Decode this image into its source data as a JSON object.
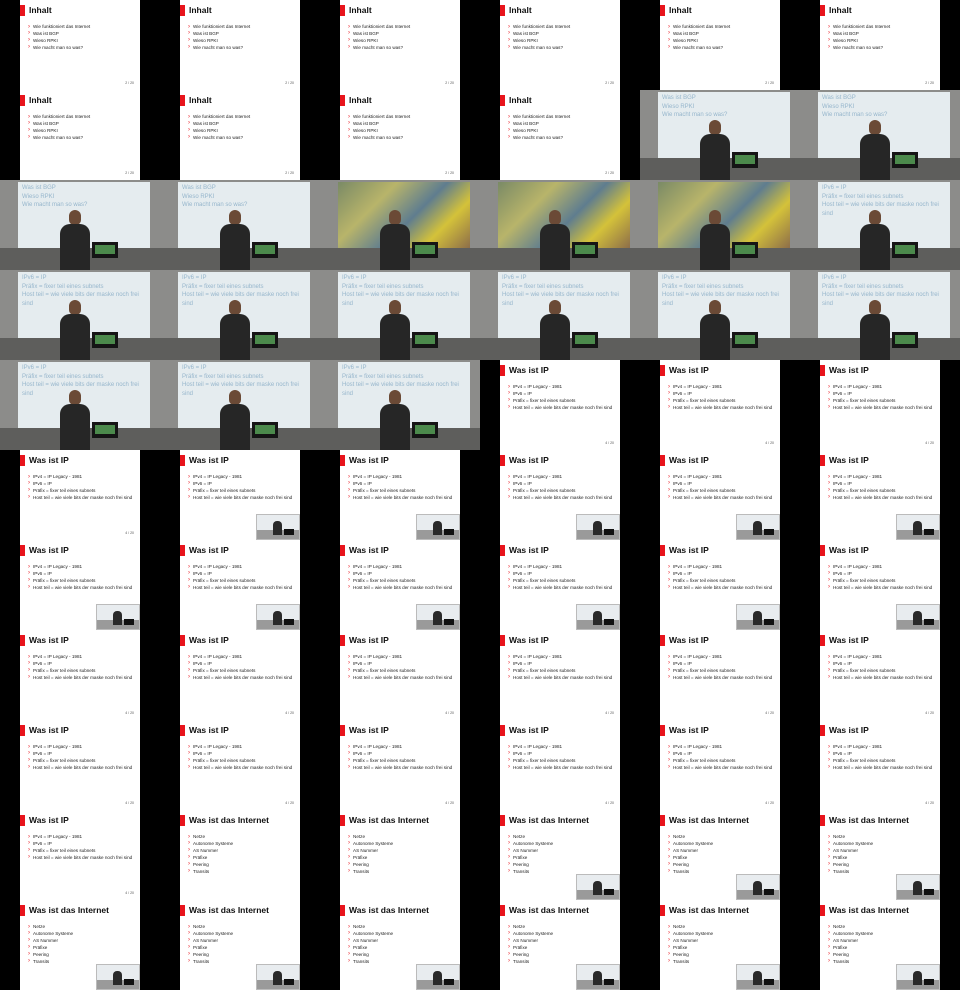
{
  "inhalt": {
    "title": "Inhalt",
    "items": [
      "Wie funktioniert das Internet",
      "Was ist BGP",
      "Wieso RPKI",
      "Wie macht man so was?"
    ],
    "page": "2 / 20"
  },
  "ip": {
    "title": "Was ist IP",
    "items": [
      "IPv4 = IP Legacy - 1981",
      "IPv6 = IP",
      "Präfix = fixer teil eines subnets",
      "Host teil = wie viele bits der maske noch frei sind"
    ],
    "page": "4 / 20"
  },
  "internet": {
    "title": "Was ist das Internet",
    "items": [
      "Netze",
      "Autonome Systeme",
      "AS Nummer",
      "Präfixe",
      "Peering",
      "Transits"
    ]
  },
  "cam_inhalt": [
    "Was ist BGP",
    "Wieso RPKI",
    "Wie macht man so was?"
  ],
  "cam_ip": [
    "IPv6 = IP",
    "Präfix = fixer teil eines subnets",
    "Host teil = wie viele bits der maske noch frei",
    "sind"
  ],
  "frames": [
    {
      "kind": "slide",
      "set": "inhalt",
      "pip": false
    },
    {
      "kind": "slide",
      "set": "inhalt",
      "pip": false
    },
    {
      "kind": "slide",
      "set": "inhalt",
      "pip": false
    },
    {
      "kind": "slide",
      "set": "inhalt",
      "pip": false
    },
    {
      "kind": "slide",
      "set": "inhalt",
      "pip": false
    },
    {
      "kind": "slide",
      "set": "inhalt",
      "pip": false
    },
    {
      "kind": "slide",
      "set": "inhalt",
      "pip": false
    },
    {
      "kind": "slide",
      "set": "inhalt",
      "pip": false
    },
    {
      "kind": "slide",
      "set": "inhalt",
      "pip": false
    },
    {
      "kind": "slide",
      "set": "inhalt",
      "pip": false
    },
    {
      "kind": "cam",
      "set": "cam_inhalt"
    },
    {
      "kind": "cam",
      "set": "cam_inhalt"
    },
    {
      "kind": "cam",
      "set": "cam_inhalt"
    },
    {
      "kind": "cam",
      "set": "cam_inhalt"
    },
    {
      "kind": "art"
    },
    {
      "kind": "art"
    },
    {
      "kind": "art"
    },
    {
      "kind": "cam",
      "set": "cam_ip"
    },
    {
      "kind": "cam",
      "set": "cam_ip"
    },
    {
      "kind": "cam",
      "set": "cam_ip"
    },
    {
      "kind": "cam",
      "set": "cam_ip"
    },
    {
      "kind": "cam",
      "set": "cam_ip"
    },
    {
      "kind": "cam",
      "set": "cam_ip"
    },
    {
      "kind": "cam",
      "set": "cam_ip"
    },
    {
      "kind": "cam",
      "set": "cam_ip"
    },
    {
      "kind": "cam",
      "set": "cam_ip"
    },
    {
      "kind": "cam",
      "set": "cam_ip"
    },
    {
      "kind": "slide",
      "set": "ip",
      "pip": false
    },
    {
      "kind": "slide",
      "set": "ip",
      "pip": false
    },
    {
      "kind": "slide",
      "set": "ip",
      "pip": false
    },
    {
      "kind": "slide",
      "set": "ip",
      "pip": false
    },
    {
      "kind": "slide",
      "set": "ip",
      "pip": true
    },
    {
      "kind": "slide",
      "set": "ip",
      "pip": true
    },
    {
      "kind": "slide",
      "set": "ip",
      "pip": true
    },
    {
      "kind": "slide",
      "set": "ip",
      "pip": true
    },
    {
      "kind": "slide",
      "set": "ip",
      "pip": true
    },
    {
      "kind": "slide",
      "set": "ip",
      "pip": true
    },
    {
      "kind": "slide",
      "set": "ip",
      "pip": true
    },
    {
      "kind": "slide",
      "set": "ip",
      "pip": true
    },
    {
      "kind": "slide",
      "set": "ip",
      "pip": true
    },
    {
      "kind": "slide",
      "set": "ip",
      "pip": true
    },
    {
      "kind": "slide",
      "set": "ip",
      "pip": true
    },
    {
      "kind": "slide",
      "set": "ip",
      "pip": false
    },
    {
      "kind": "slide",
      "set": "ip",
      "pip": false
    },
    {
      "kind": "slide",
      "set": "ip",
      "pip": false
    },
    {
      "kind": "slide",
      "set": "ip",
      "pip": false
    },
    {
      "kind": "slide",
      "set": "ip",
      "pip": false
    },
    {
      "kind": "slide",
      "set": "ip",
      "pip": false
    },
    {
      "kind": "slide",
      "set": "ip",
      "pip": false
    },
    {
      "kind": "slide",
      "set": "ip",
      "pip": false
    },
    {
      "kind": "slide",
      "set": "ip",
      "pip": false
    },
    {
      "kind": "slide",
      "set": "ip",
      "pip": false
    },
    {
      "kind": "slide",
      "set": "ip",
      "pip": false
    },
    {
      "kind": "slide",
      "set": "ip",
      "pip": false
    },
    {
      "kind": "slide",
      "set": "ip",
      "pip": false
    },
    {
      "kind": "slide",
      "set": "internet",
      "pip": false
    },
    {
      "kind": "slide",
      "set": "internet",
      "pip": false
    },
    {
      "kind": "slide",
      "set": "internet",
      "pip": true
    },
    {
      "kind": "slide",
      "set": "internet",
      "pip": true
    },
    {
      "kind": "slide",
      "set": "internet",
      "pip": true
    },
    {
      "kind": "slide",
      "set": "internet",
      "pip": true
    },
    {
      "kind": "slide",
      "set": "internet",
      "pip": true
    },
    {
      "kind": "slide",
      "set": "internet",
      "pip": true
    },
    {
      "kind": "slide",
      "set": "internet",
      "pip": true
    },
    {
      "kind": "slide",
      "set": "internet",
      "pip": true
    },
    {
      "kind": "slide",
      "set": "internet",
      "pip": true
    }
  ]
}
